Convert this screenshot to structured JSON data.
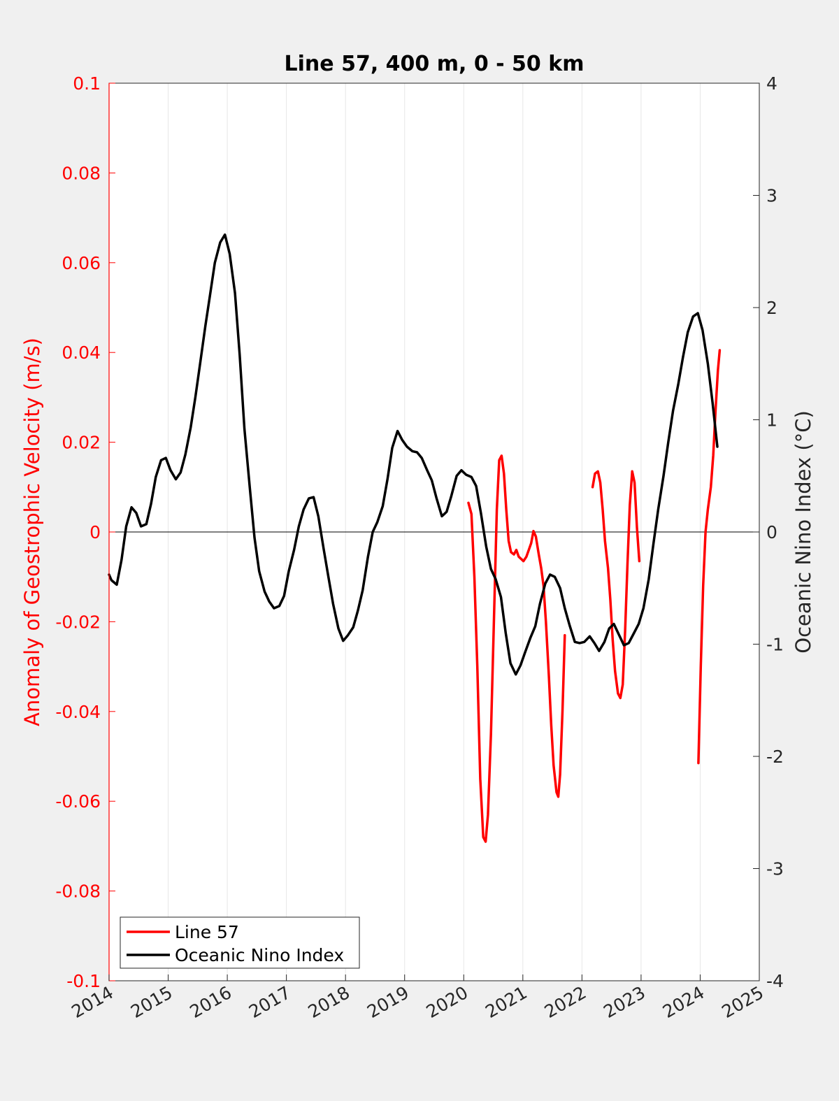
{
  "chart_data": {
    "type": "line",
    "title": "Line 57, 400 m, 0 - 50 km",
    "xlabel": "",
    "ylabel_left": "Anomaly of Geostrophic Velocity (m/s)",
    "ylabel_right": "Oceanic Nino Index (°C)",
    "xlim": [
      2014,
      2025
    ],
    "ylim_left": [
      -0.1,
      0.1
    ],
    "ylim_right": [
      -4,
      4
    ],
    "x_ticks": [
      "2014",
      "2015",
      "2016",
      "2017",
      "2018",
      "2019",
      "2020",
      "2021",
      "2022",
      "2023",
      "2024",
      "2025"
    ],
    "y_ticks_left": [
      "0.1",
      "0.08",
      "0.06",
      "0.04",
      "0.02",
      "0",
      "-0.02",
      "-0.04",
      "-0.06",
      "-0.08",
      "-0.1"
    ],
    "y_ticks_right": [
      "4",
      "3",
      "2",
      "1",
      "0",
      "-1",
      "-2",
      "-3",
      "-4"
    ],
    "grid": "vertical",
    "legend_position": "bottom-left",
    "colors": {
      "line57": "#ff0000",
      "oni": "#000000",
      "left_axis": "#ff0000",
      "right_axis": "#262626"
    },
    "series": [
      {
        "name": "Line 57",
        "axis": "left",
        "segments": [
          [
            [
              2020.08,
              0.0065
            ],
            [
              2020.13,
              0.004
            ],
            [
              2020.18,
              -0.01
            ],
            [
              2020.23,
              -0.03
            ],
            [
              2020.28,
              -0.055
            ],
            [
              2020.33,
              -0.068
            ],
            [
              2020.37,
              -0.069
            ],
            [
              2020.41,
              -0.063
            ],
            [
              2020.46,
              -0.045
            ],
            [
              2020.51,
              -0.02
            ],
            [
              2020.56,
              0.005
            ],
            [
              2020.6,
              0.016
            ],
            [
              2020.64,
              0.017
            ],
            [
              2020.68,
              0.013
            ],
            [
              2020.72,
              0.005
            ],
            [
              2020.76,
              -0.002
            ],
            [
              2020.8,
              -0.0045
            ],
            [
              2020.85,
              -0.005
            ],
            [
              2020.89,
              -0.004
            ],
            [
              2020.93,
              -0.0055
            ],
            [
              2020.97,
              -0.006
            ],
            [
              2021.01,
              -0.0065
            ],
            [
              2021.06,
              -0.0055
            ],
            [
              2021.1,
              -0.004
            ],
            [
              2021.14,
              -0.0025
            ],
            [
              2021.18,
              0.0002
            ],
            [
              2021.22,
              -0.001
            ],
            [
              2021.27,
              -0.005
            ],
            [
              2021.31,
              -0.008
            ],
            [
              2021.35,
              -0.012
            ],
            [
              2021.39,
              -0.02
            ],
            [
              2021.44,
              -0.032
            ],
            [
              2021.48,
              -0.043
            ],
            [
              2021.52,
              -0.052
            ],
            [
              2021.57,
              -0.058
            ],
            [
              2021.6,
              -0.059
            ],
            [
              2021.63,
              -0.054
            ],
            [
              2021.67,
              -0.04
            ],
            [
              2021.71,
              -0.023
            ]
          ],
          [
            [
              2022.18,
              0.01
            ],
            [
              2022.22,
              0.013
            ],
            [
              2022.27,
              0.0135
            ],
            [
              2022.31,
              0.011
            ],
            [
              2022.35,
              0.005
            ],
            [
              2022.39,
              -0.002
            ],
            [
              2022.44,
              -0.008
            ],
            [
              2022.48,
              -0.015
            ],
            [
              2022.52,
              -0.024
            ],
            [
              2022.56,
              -0.031
            ],
            [
              2022.61,
              -0.036
            ],
            [
              2022.65,
              -0.037
            ],
            [
              2022.69,
              -0.034
            ],
            [
              2022.73,
              -0.022
            ],
            [
              2022.77,
              -0.007
            ],
            [
              2022.81,
              0.006
            ],
            [
              2022.85,
              0.0135
            ],
            [
              2022.89,
              0.011
            ],
            [
              2022.93,
              0.001
            ],
            [
              2022.97,
              -0.0065
            ]
          ],
          [
            [
              2023.97,
              -0.0515
            ],
            [
              2024.01,
              -0.03
            ],
            [
              2024.05,
              -0.012
            ],
            [
              2024.09,
              0.0
            ],
            [
              2024.13,
              0.005
            ],
            [
              2024.18,
              0.01
            ],
            [
              2024.22,
              0.017
            ],
            [
              2024.26,
              0.027
            ],
            [
              2024.3,
              0.036
            ],
            [
              2024.33,
              0.0405
            ]
          ]
        ]
      },
      {
        "name": "Oceanic Nino Index",
        "axis": "right",
        "segments": [
          [
            [
              2014.0,
              -0.38
            ],
            [
              2014.04,
              -0.43
            ],
            [
              2014.13,
              -0.47
            ],
            [
              2014.21,
              -0.25
            ],
            [
              2014.29,
              0.05
            ],
            [
              2014.38,
              0.22
            ],
            [
              2014.46,
              0.17
            ],
            [
              2014.54,
              0.05
            ],
            [
              2014.63,
              0.07
            ],
            [
              2014.71,
              0.25
            ],
            [
              2014.79,
              0.49
            ],
            [
              2014.88,
              0.64
            ],
            [
              2014.96,
              0.66
            ],
            [
              2015.04,
              0.55
            ],
            [
              2015.13,
              0.47
            ],
            [
              2015.21,
              0.53
            ],
            [
              2015.29,
              0.69
            ],
            [
              2015.38,
              0.93
            ],
            [
              2015.46,
              1.2
            ],
            [
              2015.54,
              1.5
            ],
            [
              2015.63,
              1.84
            ],
            [
              2015.71,
              2.12
            ],
            [
              2015.79,
              2.4
            ],
            [
              2015.88,
              2.58
            ],
            [
              2015.96,
              2.65
            ],
            [
              2016.04,
              2.48
            ],
            [
              2016.13,
              2.13
            ],
            [
              2016.21,
              1.58
            ],
            [
              2016.29,
              0.92
            ],
            [
              2016.38,
              0.4
            ],
            [
              2016.46,
              -0.05
            ],
            [
              2016.54,
              -0.35
            ],
            [
              2016.63,
              -0.53
            ],
            [
              2016.71,
              -0.62
            ],
            [
              2016.79,
              -0.68
            ],
            [
              2016.88,
              -0.66
            ],
            [
              2016.96,
              -0.57
            ],
            [
              2017.04,
              -0.35
            ],
            [
              2017.13,
              -0.16
            ],
            [
              2017.21,
              0.05
            ],
            [
              2017.29,
              0.2
            ],
            [
              2017.38,
              0.3
            ],
            [
              2017.46,
              0.31
            ],
            [
              2017.54,
              0.14
            ],
            [
              2017.63,
              -0.15
            ],
            [
              2017.71,
              -0.4
            ],
            [
              2017.79,
              -0.64
            ],
            [
              2017.88,
              -0.86
            ],
            [
              2017.96,
              -0.97
            ],
            [
              2018.04,
              -0.92
            ],
            [
              2018.13,
              -0.85
            ],
            [
              2018.21,
              -0.7
            ],
            [
              2018.29,
              -0.52
            ],
            [
              2018.38,
              -0.22
            ],
            [
              2018.46,
              0.0
            ],
            [
              2018.54,
              0.09
            ],
            [
              2018.63,
              0.23
            ],
            [
              2018.71,
              0.47
            ],
            [
              2018.79,
              0.75
            ],
            [
              2018.88,
              0.9
            ],
            [
              2018.96,
              0.82
            ],
            [
              2019.04,
              0.76
            ],
            [
              2019.13,
              0.72
            ],
            [
              2019.21,
              0.71
            ],
            [
              2019.29,
              0.66
            ],
            [
              2019.38,
              0.55
            ],
            [
              2019.46,
              0.46
            ],
            [
              2019.54,
              0.3
            ],
            [
              2019.63,
              0.14
            ],
            [
              2019.71,
              0.18
            ],
            [
              2019.79,
              0.32
            ],
            [
              2019.88,
              0.5
            ],
            [
              2019.96,
              0.55
            ],
            [
              2020.04,
              0.51
            ],
            [
              2020.13,
              0.49
            ],
            [
              2020.21,
              0.41
            ],
            [
              2020.29,
              0.17
            ],
            [
              2020.38,
              -0.13
            ],
            [
              2020.46,
              -0.33
            ],
            [
              2020.54,
              -0.42
            ],
            [
              2020.63,
              -0.58
            ],
            [
              2020.71,
              -0.9
            ],
            [
              2020.79,
              -1.17
            ],
            [
              2020.88,
              -1.27
            ],
            [
              2020.96,
              -1.19
            ],
            [
              2021.04,
              -1.07
            ],
            [
              2021.13,
              -0.94
            ],
            [
              2021.21,
              -0.84
            ],
            [
              2021.29,
              -0.64
            ],
            [
              2021.38,
              -0.46
            ],
            [
              2021.46,
              -0.38
            ],
            [
              2021.54,
              -0.4
            ],
            [
              2021.63,
              -0.5
            ],
            [
              2021.71,
              -0.68
            ],
            [
              2021.79,
              -0.83
            ],
            [
              2021.88,
              -0.98
            ],
            [
              2021.96,
              -0.99
            ],
            [
              2022.04,
              -0.98
            ],
            [
              2022.13,
              -0.93
            ],
            [
              2022.21,
              -0.99
            ],
            [
              2022.29,
              -1.06
            ],
            [
              2022.38,
              -0.98
            ],
            [
              2022.46,
              -0.86
            ],
            [
              2022.54,
              -0.82
            ],
            [
              2022.63,
              -0.92
            ],
            [
              2022.71,
              -1.01
            ],
            [
              2022.79,
              -0.99
            ],
            [
              2022.88,
              -0.9
            ],
            [
              2022.96,
              -0.82
            ],
            [
              2023.04,
              -0.68
            ],
            [
              2023.13,
              -0.42
            ],
            [
              2023.21,
              -0.1
            ],
            [
              2023.29,
              0.2
            ],
            [
              2023.38,
              0.5
            ],
            [
              2023.46,
              0.8
            ],
            [
              2023.54,
              1.08
            ],
            [
              2023.63,
              1.32
            ],
            [
              2023.71,
              1.56
            ],
            [
              2023.79,
              1.78
            ],
            [
              2023.88,
              1.92
            ],
            [
              2023.96,
              1.95
            ],
            [
              2024.04,
              1.8
            ],
            [
              2024.13,
              1.5
            ],
            [
              2024.21,
              1.15
            ],
            [
              2024.29,
              0.76
            ]
          ]
        ]
      }
    ]
  }
}
